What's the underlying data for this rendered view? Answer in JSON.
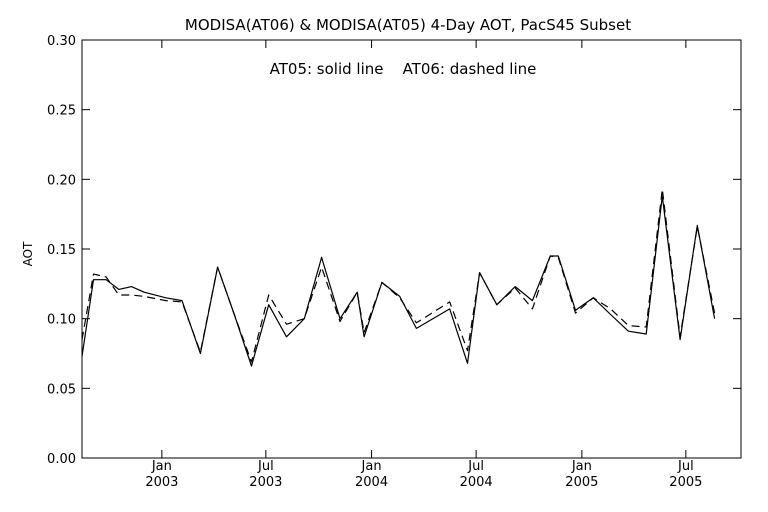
{
  "chart_data": {
    "type": "line",
    "title": "MODISA(AT06) & MODISA(AT05) 4-Day AOT, PacS45 Subset",
    "annotation": "AT05: solid line    AT06: dashed line",
    "xlabel": "",
    "ylabel": "AOT",
    "ylim": [
      0.0,
      0.3
    ],
    "yticks": [
      "0.00",
      "0.05",
      "0.10",
      "0.15",
      "0.20",
      "0.25",
      "0.30"
    ],
    "xlim": [
      "2002-08-15",
      "2005-10-05"
    ],
    "xticks": [
      {
        "date": "2003-01-01",
        "line1": "Jan",
        "line2": "2003"
      },
      {
        "date": "2003-07-01",
        "line1": "Jul",
        "line2": "2003"
      },
      {
        "date": "2004-01-01",
        "line1": "Jan",
        "line2": "2004"
      },
      {
        "date": "2004-07-01",
        "line1": "Jul",
        "line2": "2004"
      },
      {
        "date": "2005-01-01",
        "line1": "Jan",
        "line2": "2005"
      },
      {
        "date": "2005-07-01",
        "line1": "Jul",
        "line2": "2005"
      }
    ],
    "grid": false,
    "x": [
      "2002-08-15",
      "2002-09-04",
      "2002-09-26",
      "2002-10-18",
      "2002-11-09",
      "2002-12-01",
      "2003-01-08",
      "2003-02-05",
      "2003-03-09",
      "2003-04-08",
      "2003-05-07",
      "2003-06-06",
      "2003-07-06",
      "2003-08-06",
      "2003-09-06",
      "2003-10-06",
      "2003-11-07",
      "2003-12-07",
      "2003-12-19",
      "2004-01-19",
      "2004-02-19",
      "2004-03-19",
      "2004-05-16",
      "2004-06-16",
      "2004-07-07",
      "2004-08-06",
      "2004-09-07",
      "2004-10-07",
      "2004-11-07",
      "2004-11-21",
      "2004-12-21",
      "2005-01-21",
      "2005-02-20",
      "2005-03-23",
      "2005-04-23",
      "2005-05-21",
      "2005-06-21",
      "2005-07-21",
      "2005-08-20",
      "2005-09-20",
      "2005-10-05"
    ],
    "series": [
      {
        "name": "AT05",
        "style": "solid",
        "color": "#000000",
        "values": [
          0.073,
          0.128,
          0.128,
          0.121,
          0.123,
          0.119,
          0.115,
          0.113,
          0.075,
          0.137,
          0.103,
          0.066,
          0.11,
          0.087,
          0.1,
          0.144,
          0.1,
          0.119,
          0.087,
          0.126,
          0.116,
          0.093,
          0.107,
          0.068,
          0.133,
          0.11,
          0.123,
          0.113,
          0.145,
          0.145,
          0.106,
          0.115,
          0.103,
          0.091,
          0.089,
          0.188,
          0.085,
          0.167,
          0.1,
          null,
          null
        ]
      },
      {
        "name": "AT06",
        "style": "dashed",
        "color": "#000000",
        "values": [
          0.085,
          0.132,
          0.13,
          0.117,
          0.117,
          0.116,
          0.113,
          0.112,
          0.076,
          0.137,
          0.103,
          0.069,
          0.117,
          0.096,
          0.1,
          0.137,
          0.098,
          0.119,
          0.09,
          0.126,
          0.115,
          0.097,
          0.112,
          0.077,
          0.133,
          0.11,
          0.122,
          0.107,
          0.145,
          0.144,
          0.104,
          0.115,
          0.107,
          0.095,
          0.094,
          0.193,
          0.087,
          0.166,
          0.104,
          null,
          null
        ]
      }
    ]
  }
}
